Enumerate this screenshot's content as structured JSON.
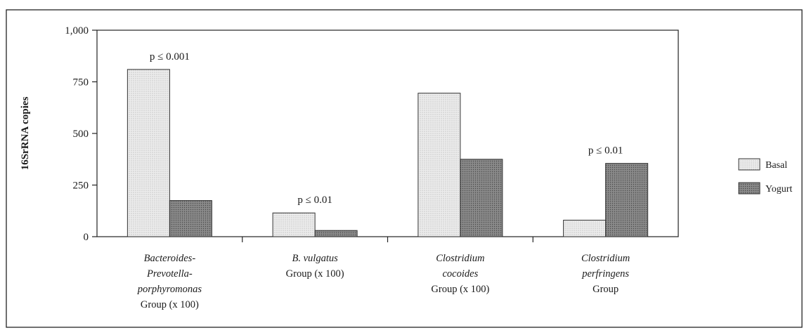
{
  "chart_data": {
    "type": "bar",
    "title": "",
    "xlabel": "",
    "ylabel": "16SrRNA copies",
    "ylim": [
      0,
      1000
    ],
    "yticks": [
      "0",
      "250",
      "500",
      "750",
      "1,000"
    ],
    "yticks_values": [
      0,
      250,
      500,
      750,
      1000
    ],
    "grid": false,
    "legend_position": "right",
    "categories": [
      [
        "Bacteroides-",
        "Prevotella-",
        "porphyromonas",
        "Group (x 100)"
      ],
      [
        "B. vulgatus",
        "Group (x 100)"
      ],
      [
        "Clostridium",
        "cocoides",
        "Group (x 100)"
      ],
      [
        "Clostridium",
        "perfringens",
        "Group"
      ]
    ],
    "series": [
      {
        "name": "Basal",
        "values": [
          810,
          115,
          695,
          80
        ],
        "color": "#e6e6e6",
        "pattern": "dotted-light"
      },
      {
        "name": "Yogurt",
        "values": [
          175,
          30,
          375,
          355
        ],
        "color": "#7a7a7a",
        "pattern": "dotted-dark"
      }
    ],
    "annotations": [
      {
        "category_index": 0,
        "text": "p ≤ 0.001"
      },
      {
        "category_index": 1,
        "text": "p ≤ 0.01"
      },
      {
        "category_index": 3,
        "text": "p ≤ 0.01"
      }
    ]
  }
}
